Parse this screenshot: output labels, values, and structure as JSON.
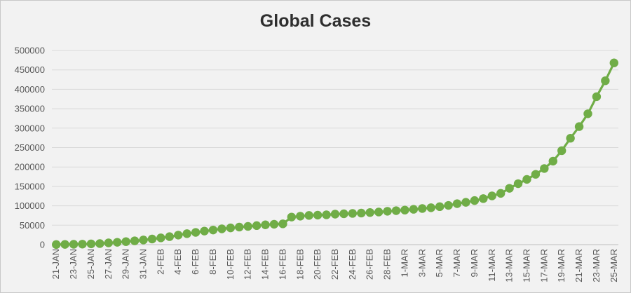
{
  "chart_data": {
    "type": "line",
    "title": "Global Cases",
    "xlabel": "",
    "ylabel": "",
    "ylim": [
      0,
      500000
    ],
    "yticks": [
      0,
      50000,
      100000,
      150000,
      200000,
      250000,
      300000,
      350000,
      400000,
      450000,
      500000
    ],
    "grid": true,
    "legend": "none",
    "x": [
      "21-Jan",
      "22-Jan",
      "23-Jan",
      "24-Jan",
      "25-Jan",
      "26-Jan",
      "27-Jan",
      "28-Jan",
      "29-Jan",
      "30-Jan",
      "31-Jan",
      "1-Feb",
      "2-Feb",
      "3-Feb",
      "4-Feb",
      "5-Feb",
      "6-Feb",
      "7-Feb",
      "8-Feb",
      "9-Feb",
      "10-Feb",
      "11-Feb",
      "12-Feb",
      "13-Feb",
      "14-Feb",
      "15-Feb",
      "16-Feb",
      "17-Feb",
      "18-Feb",
      "19-Feb",
      "20-Feb",
      "21-Feb",
      "22-Feb",
      "23-Feb",
      "24-Feb",
      "25-Feb",
      "26-Feb",
      "27-Feb",
      "28-Feb",
      "29-Feb",
      "1-Mar",
      "2-Mar",
      "3-Mar",
      "4-Mar",
      "5-Mar",
      "6-Mar",
      "7-Mar",
      "8-Mar",
      "9-Mar",
      "10-Mar",
      "11-Mar",
      "12-Mar",
      "13-Mar",
      "14-Mar",
      "15-Mar",
      "16-Mar",
      "17-Mar",
      "18-Mar",
      "19-Mar",
      "20-Mar",
      "21-Mar",
      "22-Mar",
      "23-Mar",
      "24-Mar",
      "25-Mar"
    ],
    "xtick_labels": [
      "21-JAN",
      "23-JAN",
      "25-JAN",
      "27-JAN",
      "29-JAN",
      "31-JAN",
      "2-FEB",
      "4-FEB",
      "6-FEB",
      "8-FEB",
      "10-FEB",
      "12-FEB",
      "14-FEB",
      "16-FEB",
      "18-FEB",
      "20-FEB",
      "22-FEB",
      "24-FEB",
      "26-FEB",
      "28-FEB",
      "1-MAR",
      "3-MAR",
      "5-MAR",
      "7-MAR",
      "9-MAR",
      "11-MAR",
      "13-MAR",
      "15-MAR",
      "17-MAR",
      "19-MAR",
      "21-MAR",
      "23-MAR",
      "25-MAR"
    ],
    "series": [
      {
        "name": "",
        "color": "#70ad47",
        "values": [
          300,
          600,
          900,
          1300,
          2000,
          2800,
          4500,
          6000,
          7800,
          9800,
          12000,
          14500,
          17400,
          20600,
          24500,
          28300,
          31500,
          34900,
          37600,
          40600,
          43100,
          45200,
          47000,
          49000,
          51000,
          52500,
          53500,
          71000,
          73300,
          75200,
          76000,
          76800,
          78500,
          79500,
          80400,
          81300,
          82700,
          84000,
          85900,
          87500,
          89000,
          91000,
          93000,
          95000,
          97800,
          101000,
          105500,
          109000,
          113500,
          118500,
          125500,
          132000,
          145000,
          157000,
          168000,
          181000,
          196000,
          215000,
          242000,
          274000,
          304000,
          337000,
          381000,
          422000,
          468000
        ]
      }
    ]
  }
}
